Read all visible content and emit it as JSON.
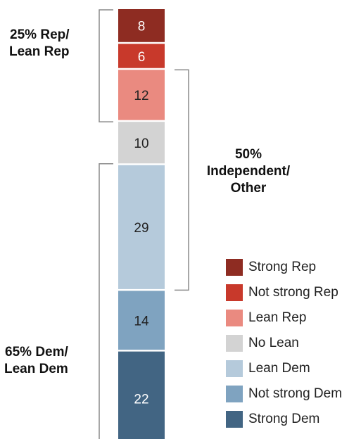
{
  "chart_data": {
    "type": "bar",
    "orientation": "stacked-vertical",
    "segments": [
      {
        "name": "Strong Rep",
        "value": 8,
        "label": "8",
        "color": "#8e2c22",
        "text_color": "#ffffff"
      },
      {
        "name": "Not strong Rep",
        "value": 6,
        "label": "6",
        "color": "#c8392b",
        "text_color": "#ffffff"
      },
      {
        "name": "Lean Rep",
        "value": 12,
        "label": "12",
        "color": "#ea8a80",
        "text_color": "#222222"
      },
      {
        "name": "No Lean",
        "value": 10,
        "label": "10",
        "color": "#d3d3d3",
        "text_color": "#222222"
      },
      {
        "name": "Lean Dem",
        "value": 29,
        "label": "29",
        "color": "#b5cadb",
        "text_color": "#222222"
      },
      {
        "name": "Not strong Dem",
        "value": 14,
        "label": "14",
        "color": "#7fa3c0",
        "text_color": "#222222"
      },
      {
        "name": "Strong Dem",
        "value": 22,
        "label": "22",
        "color": "#426583",
        "text_color": "#ffffff"
      }
    ],
    "groups": [
      {
        "label_lines": [
          "25% Rep/",
          "Lean Rep"
        ],
        "from_segment": 0,
        "to_segment": 2
      },
      {
        "label_lines": [
          "50%",
          "Independent/",
          "Other"
        ],
        "from_segment": 2,
        "to_segment": 4
      },
      {
        "label_lines": [
          "65% Dem/",
          "Lean Dem"
        ],
        "from_segment": 4,
        "to_segment": 6
      }
    ],
    "legend": {
      "placement": "bottom-right",
      "items": [
        "Strong Rep",
        "Not strong Rep",
        "Lean Rep",
        "No Lean",
        "Lean Dem",
        "Not strong Dem",
        "Strong Dem"
      ]
    }
  }
}
